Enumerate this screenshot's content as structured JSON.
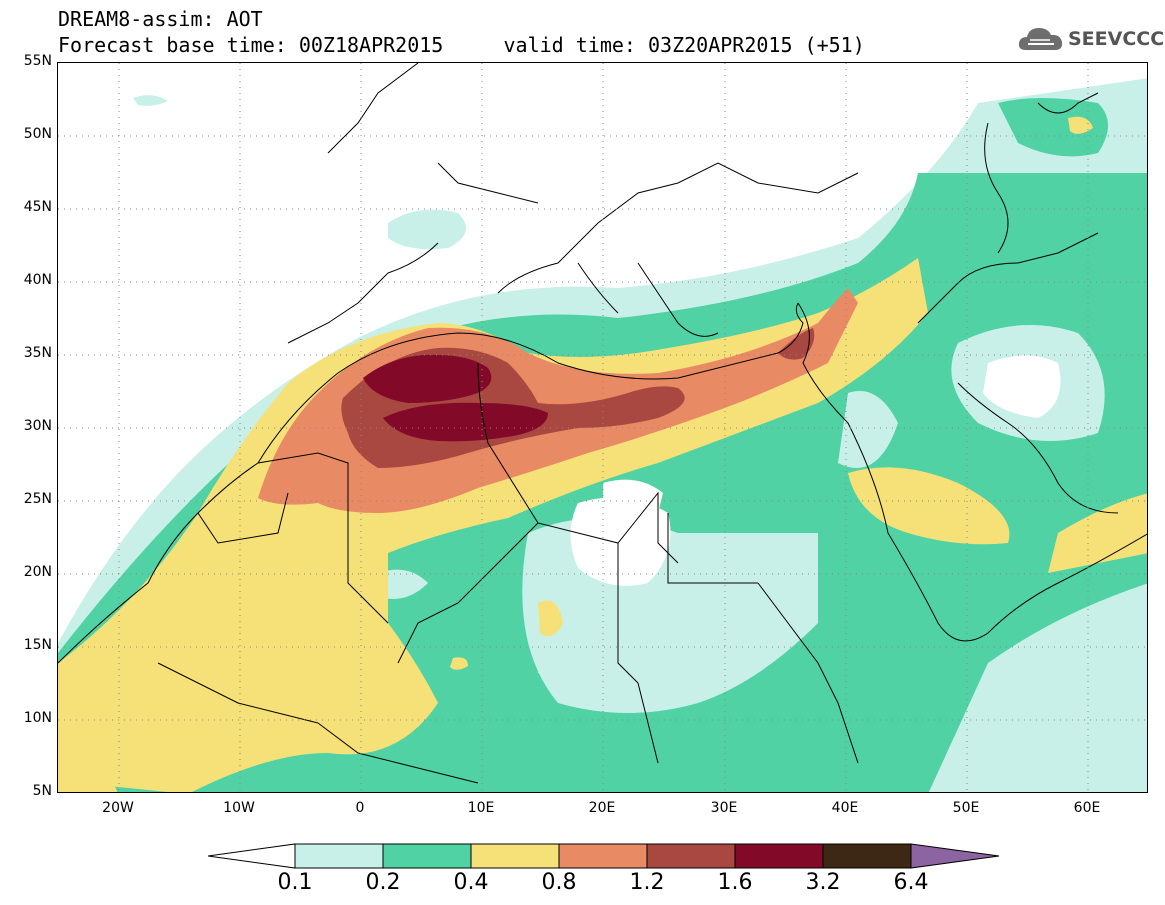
{
  "header": {
    "title_line1": "DREAM8-assim: AOT",
    "title_line2": "Forecast base time: 00Z18APR2015     valid time: 03Z20APR2015 (+51)"
  },
  "logo": {
    "text": "SEEVCCC",
    "icon": "cloud-icon"
  },
  "map": {
    "lat_labels": [
      "55N",
      "50N",
      "45N",
      "40N",
      "35N",
      "30N",
      "25N",
      "20N",
      "15N",
      "10N",
      "5N"
    ],
    "lon_labels": [
      "20W",
      "10W",
      "0",
      "10E",
      "20E",
      "30E",
      "40E",
      "50E",
      "60E"
    ],
    "extent": {
      "lon": [
        -25,
        65
      ],
      "lat": [
        5,
        55
      ]
    }
  },
  "legend": {
    "levels": [
      "0.1",
      "0.2",
      "0.4",
      "0.8",
      "1.2",
      "1.6",
      "3.2",
      "6.4"
    ],
    "colors": [
      "#ffffff",
      "#c8f0e8",
      "#50d2a4",
      "#f5e178",
      "#e88a64",
      "#a84840",
      "#820a28",
      "#3c2814",
      "#8c64a0"
    ]
  }
}
